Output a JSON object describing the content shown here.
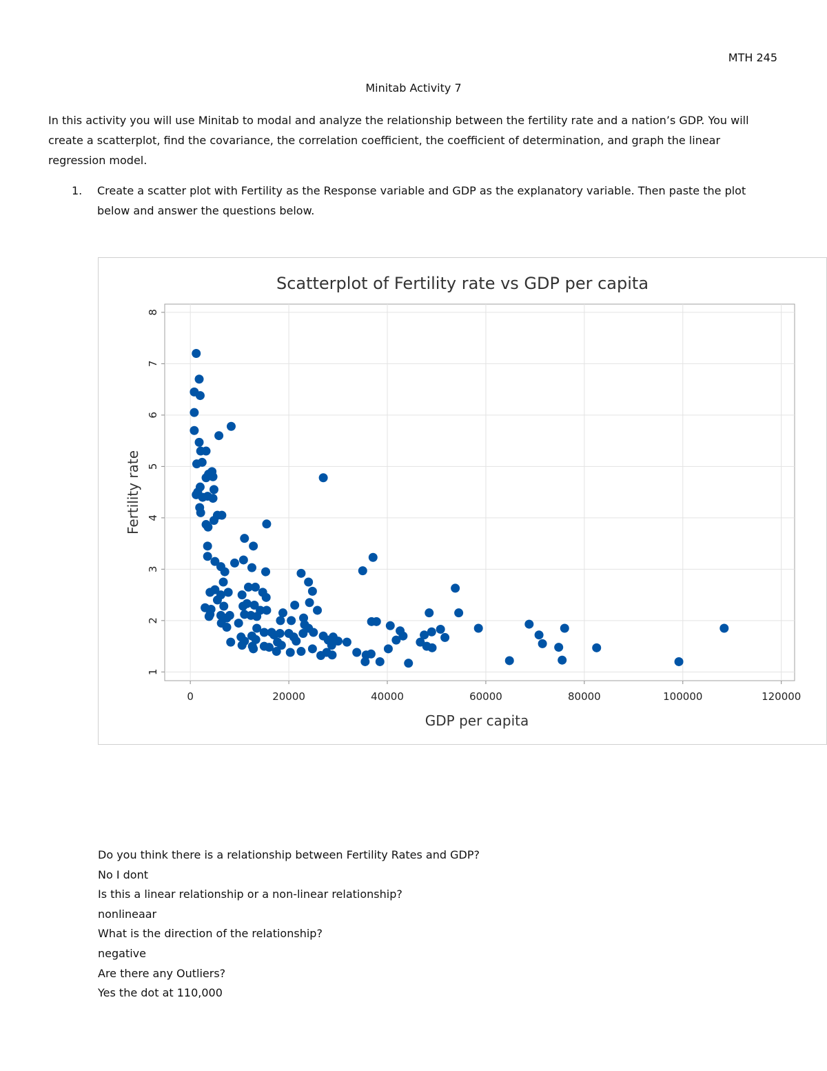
{
  "header": {
    "course": "MTH 245"
  },
  "title": "Minitab Activity 7",
  "intro": "In this activity you will use Minitab to modal and analyze the relationship between the fertility rate and a nation’s GDP. You will create a scatterplot, find the covariance, the correlation coefficient, the coefficient of determination, and graph the linear regression model.",
  "questions": [
    {
      "number": "1.",
      "text": "Create a scatter plot with Fertility as the Response variable and GDP as the explanatory variable. Then paste the plot below and answer the questions below."
    }
  ],
  "chart_data": {
    "type": "scatter",
    "title": "Scatterplot of Fertility rate vs GDP per capita",
    "x_label": "GDP per capita",
    "y_label": "Fertility rate",
    "color": "#0054a6",
    "grid": true,
    "xlim": [
      -5200,
      122700
    ],
    "ylim": [
      0.83,
      8.16
    ],
    "xticks": [
      0,
      20000,
      40000,
      60000,
      80000,
      100000,
      120000
    ],
    "yticks": [
      1,
      2,
      3,
      4,
      5,
      6,
      7,
      8
    ],
    "x": [
      1200,
      1800,
      800,
      2000,
      800,
      800,
      5800,
      8300,
      1800,
      2100,
      3200,
      2400,
      1300,
      4400,
      3700,
      3200,
      4600,
      27000,
      2000,
      1500,
      4800,
      1200,
      2500,
      3500,
      4600,
      1900,
      2100,
      3200,
      4800,
      5500,
      6400,
      3600,
      15500,
      3500,
      11000,
      12800,
      3500,
      5000,
      6200,
      9000,
      10800,
      7000,
      12500,
      15300,
      37100,
      35000,
      22500,
      6700,
      24000,
      11800,
      13200,
      24800,
      53800,
      4000,
      5000,
      6200,
      7700,
      10500,
      14700,
      15400,
      5500,
      24200,
      11500,
      13000,
      21200,
      3000,
      4200,
      6800,
      10700,
      14200,
      15500,
      25800,
      54500,
      48500,
      4000,
      6200,
      8000,
      11000,
      12300,
      13500,
      18800,
      3800,
      7400,
      18300,
      20500,
      23000,
      6300,
      9800,
      23200,
      36800,
      37800,
      40600,
      7400,
      13500,
      24000,
      58500,
      68800,
      76000,
      108400,
      15000,
      16500,
      18200,
      20000,
      22900,
      25000,
      42600,
      49000,
      50800,
      10300,
      12500,
      17000,
      21000,
      27000,
      29000,
      47500,
      70800,
      41800,
      43200,
      51700,
      8200,
      11000,
      13300,
      17700,
      21500,
      28000,
      30000,
      31800,
      46700,
      71500,
      10500,
      12600,
      15000,
      16000,
      18500,
      24800,
      28700,
      48000,
      49100,
      74800,
      82500,
      12800,
      17500,
      20300,
      22500,
      26500,
      27700,
      28800,
      33800,
      35700,
      36700,
      40200,
      35500,
      38500,
      44300,
      64800,
      75500,
      99200
    ],
    "y": [
      7.2,
      6.7,
      6.45,
      6.38,
      6.05,
      5.7,
      5.6,
      5.78,
      5.47,
      5.3,
      5.3,
      5.08,
      5.05,
      4.9,
      4.85,
      4.78,
      4.8,
      4.78,
      4.6,
      4.5,
      4.55,
      4.45,
      4.4,
      4.42,
      4.38,
      4.2,
      4.1,
      3.87,
      3.95,
      4.05,
      4.05,
      3.82,
      3.88,
      3.45,
      3.6,
      3.45,
      3.25,
      3.15,
      3.05,
      3.12,
      3.18,
      2.95,
      3.03,
      2.95,
      3.23,
      2.97,
      2.92,
      2.75,
      2.75,
      2.65,
      2.65,
      2.57,
      2.63,
      2.55,
      2.6,
      2.5,
      2.55,
      2.5,
      2.55,
      2.45,
      2.4,
      2.35,
      2.33,
      2.3,
      2.3,
      2.25,
      2.22,
      2.28,
      2.28,
      2.2,
      2.2,
      2.2,
      2.15,
      2.15,
      2.12,
      2.1,
      2.1,
      2.12,
      2.1,
      2.08,
      2.15,
      2.08,
      2.05,
      2.0,
      2.0,
      2.05,
      1.95,
      1.95,
      1.92,
      1.98,
      1.98,
      1.9,
      1.87,
      1.85,
      1.85,
      1.85,
      1.93,
      1.85,
      1.85,
      1.77,
      1.77,
      1.75,
      1.75,
      1.75,
      1.77,
      1.8,
      1.78,
      1.83,
      1.68,
      1.7,
      1.72,
      1.68,
      1.7,
      1.68,
      1.72,
      1.72,
      1.62,
      1.7,
      1.67,
      1.58,
      1.6,
      1.63,
      1.58,
      1.6,
      1.62,
      1.6,
      1.58,
      1.58,
      1.55,
      1.52,
      1.5,
      1.5,
      1.48,
      1.52,
      1.45,
      1.52,
      1.5,
      1.47,
      1.48,
      1.47,
      1.45,
      1.4,
      1.38,
      1.4,
      1.32,
      1.38,
      1.33,
      1.38,
      1.33,
      1.35,
      1.45,
      1.2,
      1.2,
      1.17,
      1.22,
      1.23,
      1.2
    ]
  },
  "answers": [
    {
      "question": "Do you think there is a relationship between Fertility Rates and GDP?",
      "answer": "No I dont"
    },
    {
      "question": "Is this a linear relationship or a non-linear relationship?",
      "answer": "nonlineaar"
    },
    {
      "question": "What is the direction of the relationship?",
      "answer": "negative"
    },
    {
      "question": "Are there any Outliers?",
      "answer": "Yes the dot at 110,000"
    }
  ]
}
